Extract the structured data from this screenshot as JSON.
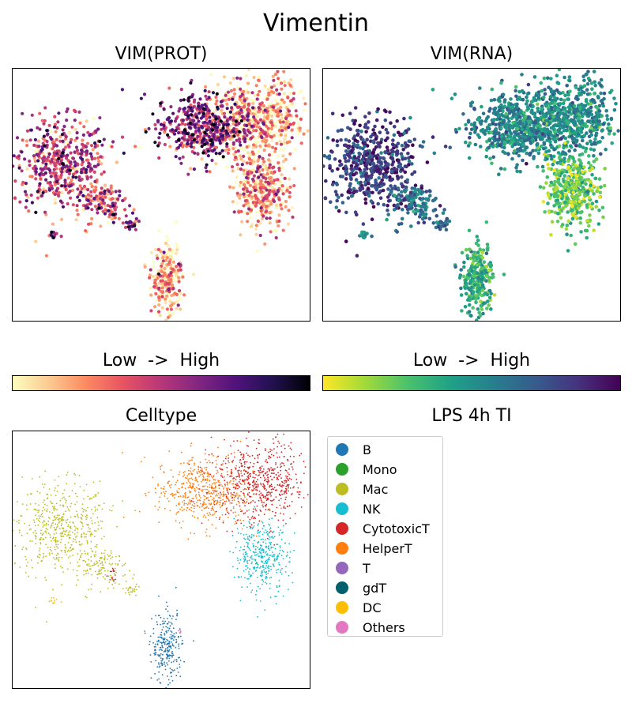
{
  "title": "Vimentin",
  "panels": {
    "prot": {
      "title": "VIM(PROT)",
      "colormap": "magma_r",
      "colorbar_label": "Low  ->  High",
      "colorbar_stops": [
        "#fcfdbf",
        "#fcc98f",
        "#fb8861",
        "#e75263",
        "#b73779",
        "#822681",
        "#51127c",
        "#221150",
        "#000004"
      ]
    },
    "rna": {
      "title": "VIM(RNA)",
      "colormap": "viridis_r",
      "colorbar_label": "Low  ->  High",
      "colorbar_stops": [
        "#fde725",
        "#a0da39",
        "#4ac16d",
        "#1fa187",
        "#277f8e",
        "#365c8d",
        "#46327e",
        "#440154"
      ]
    },
    "celltype": {
      "title": "Celltype"
    },
    "legend": {
      "title": "LPS 4h TI",
      "items": [
        {
          "label": "B",
          "color": "#1f77b4"
        },
        {
          "label": "Mono",
          "color": "#2ca02c"
        },
        {
          "label": "Mac",
          "color": "#bcbd22"
        },
        {
          "label": "NK",
          "color": "#17becf"
        },
        {
          "label": "CytotoxicT",
          "color": "#d62728"
        },
        {
          "label": "HelperT",
          "color": "#ff7f0e"
        },
        {
          "label": "T",
          "color": "#9467bd"
        },
        {
          "label": "gdT",
          "color": "#005f6b"
        },
        {
          "label": "DC",
          "color": "#ffbf00"
        },
        {
          "label": "Others",
          "color": "#e377c2"
        }
      ]
    }
  },
  "chart_data": [
    {
      "type": "scatter",
      "title": "VIM(PROT)",
      "xlabel": "",
      "ylabel": "",
      "xlim": [
        0,
        1
      ],
      "ylim": [
        0,
        1
      ],
      "grid": false,
      "color_scale": "Low -> High",
      "clusters": [
        {
          "celltype": "Mac",
          "cx": 0.16,
          "cy": 0.62,
          "sx": 0.08,
          "sy": 0.09,
          "n": 520,
          "prot_level": 0.45,
          "rna_level": 0.82
        },
        {
          "celltype": "Mac",
          "cx": 0.3,
          "cy": 0.47,
          "sx": 0.04,
          "sy": 0.04,
          "n": 110,
          "prot_level": 0.38,
          "rna_level": 0.62
        },
        {
          "celltype": "Mac",
          "cx": 0.4,
          "cy": 0.38,
          "sx": 0.015,
          "sy": 0.015,
          "n": 25,
          "prot_level": 0.55,
          "rna_level": 0.6
        },
        {
          "celltype": "DC",
          "cx": 0.14,
          "cy": 0.34,
          "sx": 0.008,
          "sy": 0.012,
          "n": 10,
          "prot_level": 0.6,
          "rna_level": 0.5
        },
        {
          "celltype": "CytotoxicT",
          "cx": 0.34,
          "cy": 0.44,
          "sx": 0.01,
          "sy": 0.02,
          "n": 15,
          "prot_level": 0.5,
          "rna_level": 0.6
        },
        {
          "celltype": "HelperT",
          "cx": 0.64,
          "cy": 0.77,
          "sx": 0.08,
          "sy": 0.07,
          "n": 520,
          "prot_level": 0.55,
          "rna_level": 0.55
        },
        {
          "celltype": "CytotoxicT",
          "cx": 0.83,
          "cy": 0.8,
          "sx": 0.08,
          "sy": 0.08,
          "n": 620,
          "prot_level": 0.15,
          "rna_level": 0.5
        },
        {
          "celltype": "NK",
          "cx": 0.84,
          "cy": 0.51,
          "sx": 0.045,
          "sy": 0.07,
          "n": 380,
          "prot_level": 0.18,
          "rna_level": 0.25
        },
        {
          "celltype": "B",
          "cx": 0.52,
          "cy": 0.16,
          "sx": 0.025,
          "sy": 0.07,
          "n": 260,
          "prot_level": 0.12,
          "rna_level": 0.35
        },
        {
          "celltype": "Others",
          "cx": 0.56,
          "cy": 0.22,
          "sx": 0.004,
          "sy": 0.004,
          "n": 4,
          "prot_level": 0.3,
          "rna_level": 0.4
        }
      ]
    },
    {
      "type": "scatter",
      "title": "VIM(RNA)",
      "xlabel": "",
      "ylabel": "",
      "xlim": [
        0,
        1
      ],
      "ylim": [
        0,
        1
      ],
      "grid": false,
      "color_scale": "Low -> High",
      "clusters_ref": "same embedding as VIM(PROT), colored by rna_level"
    },
    {
      "type": "scatter",
      "title": "Celltype",
      "xlabel": "",
      "ylabel": "",
      "xlim": [
        0,
        1
      ],
      "ylim": [
        0,
        1
      ],
      "grid": false,
      "legend_title": "LPS 4h TI",
      "legend_position": "right",
      "clusters_ref": "same embedding as VIM(PROT), colored by celltype"
    }
  ]
}
